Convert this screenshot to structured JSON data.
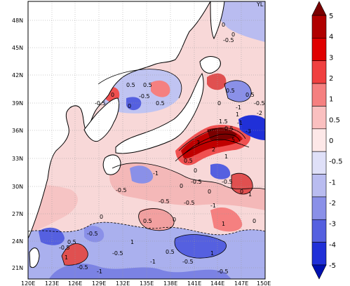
{
  "map": {
    "lon_ticks": [
      "120E",
      "123E",
      "126E",
      "129E",
      "132E",
      "135E",
      "138E",
      "141E",
      "144E",
      "147E",
      "150E"
    ],
    "lat_ticks": [
      "21N",
      "24N",
      "27N",
      "30N",
      "33N",
      "36N",
      "39N",
      "42N",
      "45N",
      "48N"
    ],
    "contour_labels": [
      "0",
      "0",
      "-0.5",
      "0.5",
      "0.5",
      "0.5",
      "0",
      "-0.5",
      "0",
      "-0.5",
      "0.5",
      "0.5",
      "0",
      "1",
      "-1",
      "-0.5",
      "1.5",
      "0.5",
      "-3",
      "-1",
      "-2",
      "5",
      "3",
      "2",
      "1",
      "0.5",
      "0",
      "-1",
      "-0.5",
      "-0.5",
      "0",
      "0",
      "-0.5",
      "0",
      "1",
      "-0.5",
      "-0.5",
      "-1",
      "0.5",
      "0",
      "1",
      "0",
      "-0.5",
      "0",
      "1",
      "0.5",
      "1",
      "-0.5",
      "-0.5",
      "-1",
      "0.5",
      "-1",
      "-0.5",
      "1",
      "-0.5",
      "-0.5"
    ],
    "top_right_label": "YL",
    "colors": {
      "land": "#ffffff",
      "coast": "#000000",
      "grid": "#999999"
    }
  },
  "colorbar": {
    "labels": [
      "5",
      "4",
      "3",
      "2",
      "1",
      "0.5",
      "0",
      "-0.5",
      "-1",
      "-2",
      "-3",
      "-4",
      "-5"
    ],
    "colors": [
      "#7a0000",
      "#b00000",
      "#e00000",
      "#f04040",
      "#f58080",
      "#fac0c0",
      "#fde8e8",
      "#dfe0f8",
      "#b9bcf0",
      "#8a90e8",
      "#5560e0",
      "#2030d8",
      "#0010b0"
    ]
  }
}
